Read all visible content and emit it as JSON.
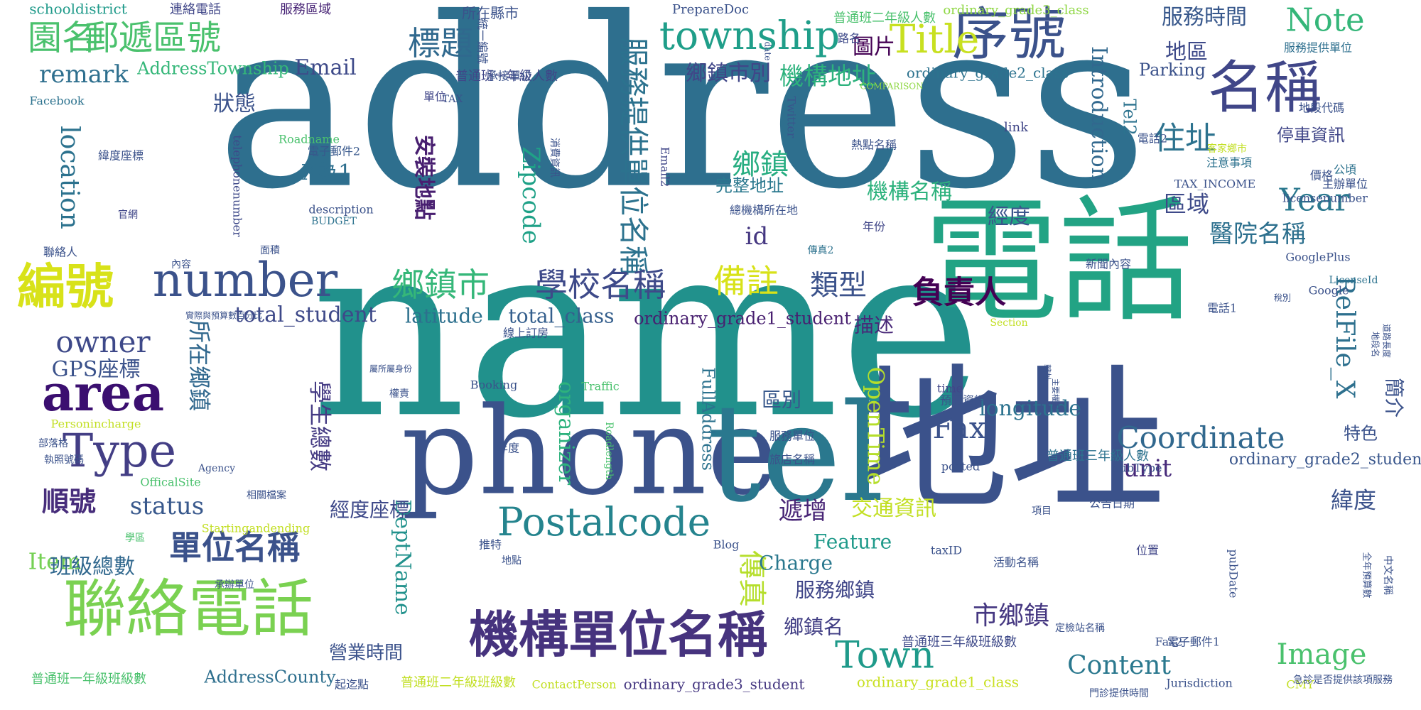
{
  "words": [
    {
      "text": "address",
      "color": "#2e6f8e"
    },
    {
      "text": "name",
      "color": "#21918c"
    },
    {
      "text": "電話",
      "color": "#22a384"
    },
    {
      "text": "地址",
      "color": "#3b528b"
    },
    {
      "text": "phone",
      "color": "#3b528b"
    },
    {
      "text": "tel",
      "color": "#2a788e"
    },
    {
      "text": "序號",
      "color": "#3b528b"
    },
    {
      "text": "名稱",
      "color": "#404688"
    },
    {
      "text": "聯絡電話",
      "color": "#7ad151"
    },
    {
      "text": "機構單位名稱",
      "color": "#46337e"
    },
    {
      "text": "township",
      "color": "#1f9e89"
    },
    {
      "text": "Title",
      "color": "#c8e020"
    },
    {
      "text": "Note",
      "color": "#34b679"
    },
    {
      "text": "服務時間",
      "color": "#38588c"
    },
    {
      "text": "地區",
      "color": "#3e4a89"
    },
    {
      "text": "園名",
      "color": "#4ac16d"
    },
    {
      "text": "郵遞區號",
      "color": "#4ac16d"
    },
    {
      "text": "標題",
      "color": "#30698e"
    },
    {
      "text": "圖片",
      "color": "#440154"
    },
    {
      "text": "機構地址",
      "color": "#2db27d"
    },
    {
      "text": "鄉鎮市別",
      "color": "#404688"
    },
    {
      "text": "服務提供單位名稱",
      "color": "#2c728e"
    },
    {
      "text": "remark",
      "color": "#2e6f8e"
    },
    {
      "text": "AddressTownship",
      "color": "#35b779"
    },
    {
      "text": "Email",
      "color": "#3e4a89"
    },
    {
      "text": "number",
      "color": "#3b528b"
    },
    {
      "text": "area",
      "color": "#3b0f70"
    },
    {
      "text": "編號",
      "color": "#d8e219"
    },
    {
      "text": "Type",
      "color": "#433e85"
    },
    {
      "text": "location",
      "color": "#2c728e"
    },
    {
      "text": "狀態",
      "color": "#3b528b"
    },
    {
      "text": "owner",
      "color": "#3e4989"
    },
    {
      "text": "GPS座標",
      "color": "#3b528b"
    },
    {
      "text": "所在鄉鎮",
      "color": "#31688e"
    },
    {
      "text": "學生總數",
      "color": "#443a83"
    },
    {
      "text": "順號",
      "color": "#472d7b"
    },
    {
      "text": "status",
      "color": "#38588c"
    },
    {
      "text": "Item",
      "color": "#75d054"
    },
    {
      "text": "班級總數",
      "color": "#31688e"
    },
    {
      "text": "單位名稱",
      "color": "#3b528b"
    },
    {
      "text": "Postalcode",
      "color": "#25848e"
    },
    {
      "text": "傳真",
      "color": "#b5de2b"
    },
    {
      "text": "學校名稱",
      "color": "#3e4a89"
    },
    {
      "text": "鄉鎮市",
      "color": "#35b779"
    },
    {
      "text": "備註",
      "color": "#d8e219"
    },
    {
      "text": "類型",
      "color": "#3b528b"
    },
    {
      "text": "負責人",
      "color": "#440154"
    },
    {
      "text": "total_student",
      "color": "#3e4989"
    },
    {
      "text": "latitude",
      "color": "#2d708e"
    },
    {
      "text": "total_class",
      "color": "#355f8d"
    },
    {
      "text": "ordinary_grade1_student",
      "color": "#481f70"
    },
    {
      "text": "Zipcode",
      "color": "#1fa187"
    },
    {
      "text": "安裝地點",
      "color": "#481f70"
    },
    {
      "text": "鄉鎮",
      "color": "#27ad81"
    },
    {
      "text": "X為1",
      "color": "#2e6f8e"
    },
    {
      "text": "id",
      "color": "#453781"
    },
    {
      "text": "經度",
      "color": "#3a548c"
    },
    {
      "text": "機構名稱",
      "color": "#2db27d"
    },
    {
      "text": "完整地址",
      "color": "#2a788e"
    },
    {
      "text": "Introduction",
      "color": "#31688e"
    },
    {
      "text": "住址",
      "color": "#2c728e"
    },
    {
      "text": "區域",
      "color": "#3e4a89"
    },
    {
      "text": "Year",
      "color": "#2a788e"
    },
    {
      "text": "醫院名稱",
      "color": "#2d708e"
    },
    {
      "text": "停車資訊",
      "color": "#404688"
    },
    {
      "text": "RelFile_X",
      "color": "#2d708e"
    },
    {
      "text": "Fax",
      "color": "#3b528b"
    },
    {
      "text": "Coordinate",
      "color": "#31688e"
    },
    {
      "text": "描述",
      "color": "#482878"
    },
    {
      "text": "簡介",
      "color": "#3b528b"
    },
    {
      "text": "longitude",
      "color": "#2c728e"
    },
    {
      "text": "OpenTime",
      "color": "#b5de2b"
    },
    {
      "text": "區別",
      "color": "#38588c"
    },
    {
      "text": "DeptName",
      "color": "#21918c"
    },
    {
      "text": "organizer",
      "color": "#2db27d"
    },
    {
      "text": "unit",
      "color": "#472a7a"
    },
    {
      "text": "緯度",
      "color": "#3b528b"
    },
    {
      "text": "特色",
      "color": "#3b528b"
    },
    {
      "text": "交通資訊",
      "color": "#c2df23"
    },
    {
      "text": "遞增",
      "color": "#482576"
    },
    {
      "text": "Feature",
      "color": "#1f9a8a"
    },
    {
      "text": "Charge",
      "color": "#2a788e"
    },
    {
      "text": "服務鄉鎮",
      "color": "#404688"
    },
    {
      "text": "鄉鎮名",
      "color": "#423f85"
    },
    {
      "text": "經度座標",
      "color": "#3e4989"
    },
    {
      "text": "營業時間",
      "color": "#3b528b"
    },
    {
      "text": "AddressCounty",
      "color": "#2e6f8e"
    },
    {
      "text": "Town",
      "color": "#1f9a8a"
    },
    {
      "text": "市鄉鎮",
      "color": "#453781"
    },
    {
      "text": "Content",
      "color": "#2a788e"
    },
    {
      "text": "Image",
      "color": "#4ac16d"
    },
    {
      "text": "FullAddress",
      "color": "#2c728e"
    },
    {
      "text": "ordinary_grade2_student",
      "color": "#39568c"
    },
    {
      "text": "ordinary_grade2_class",
      "color": "#2c728e"
    },
    {
      "text": "ordinary_grade3_class",
      "color": "#8fd744"
    },
    {
      "text": "ordinary_grade3_student",
      "color": "#453781"
    },
    {
      "text": "ordinary_grade1_class",
      "color": "#c8e020"
    },
    {
      "text": "普通班一年級人數",
      "color": "#404688"
    },
    {
      "text": "普通班二年級人數",
      "color": "#4ac16d"
    },
    {
      "text": "普通班一年級班級數",
      "color": "#4ac16d"
    },
    {
      "text": "普通班二年級班級數",
      "color": "#c2df23"
    },
    {
      "text": "普通班三年級班級數",
      "color": "#3e4989"
    },
    {
      "text": "普通班三年級人數",
      "color": "#2c728e"
    },
    {
      "text": "Parking",
      "color": "#3b528b"
    },
    {
      "text": "Tel2",
      "color": "#2c728e"
    },
    {
      "text": "所在縣市",
      "color": "#3b528b"
    },
    {
      "text": "schooldistrict",
      "color": "#1f9a8a"
    },
    {
      "text": "連絡電話",
      "color": "#404688"
    },
    {
      "text": "服務區域",
      "color": "#482576"
    },
    {
      "text": "PrepareDoc",
      "color": "#3b528b"
    },
    {
      "text": "統一編號",
      "color": "#3b528b"
    },
    {
      "text": "路名",
      "color": "#3e4989"
    },
    {
      "text": "服務提供單位",
      "color": "#2e6f8e"
    },
    {
      "text": "承接單位",
      "color": "#3b528b"
    },
    {
      "text": "單位",
      "color": "#404688"
    },
    {
      "text": "TAX",
      "color": "#3b528b"
    },
    {
      "text": "COMPARISON",
      "color": "#8fd744"
    },
    {
      "text": "地段代碼",
      "color": "#3b528b"
    },
    {
      "text": "Facebook",
      "color": "#2c728e"
    },
    {
      "text": "Twitter",
      "color": "#39568c"
    },
    {
      "text": "link",
      "color": "#404688"
    },
    {
      "text": "電話2",
      "color": "#3b528b"
    },
    {
      "text": "客家鄉市",
      "color": "#c2df23"
    },
    {
      "text": "熱點名稱",
      "color": "#3b528b"
    },
    {
      "text": "Roadname",
      "color": "#4ac16d"
    },
    {
      "text": "電子郵件2",
      "color": "#38588c"
    },
    {
      "text": "緯度座標",
      "color": "#3b528b"
    },
    {
      "text": "telephonenumber",
      "color": "#3e4989"
    },
    {
      "text": "description",
      "color": "#3b528b"
    },
    {
      "text": "BUDGET",
      "color": "#2c728e"
    },
    {
      "text": "消費資訊",
      "color": "#3b528b"
    },
    {
      "text": "Email2",
      "color": "#404688"
    },
    {
      "text": "總機構所在地",
      "color": "#3b528b"
    },
    {
      "text": "年份",
      "color": "#404688"
    },
    {
      "text": "TAX_INCOME",
      "color": "#3b528b"
    },
    {
      "text": "licensenumber",
      "color": "#3b528b"
    },
    {
      "text": "注意事項",
      "color": "#2c728e"
    },
    {
      "text": "主辦單位",
      "color": "#3b528b"
    },
    {
      "text": "價格",
      "color": "#3b528b"
    },
    {
      "text": "公頃",
      "color": "#2c728e"
    },
    {
      "text": "官網",
      "color": "#404688"
    },
    {
      "text": "聯絡人",
      "color": "#3b528b"
    },
    {
      "text": "內容",
      "color": "#3b528b"
    },
    {
      "text": "面積",
      "color": "#3b528b"
    },
    {
      "text": "傳真2",
      "color": "#2c728e"
    },
    {
      "text": "新聞內容",
      "color": "#3b528b"
    },
    {
      "text": "GooglePlus",
      "color": "#3b528b"
    },
    {
      "text": "LicenseId",
      "color": "#2c728e"
    },
    {
      "text": "Google",
      "color": "#3b528b"
    },
    {
      "text": "電話1",
      "color": "#3b528b"
    },
    {
      "text": "Section",
      "color": "#c2df23"
    },
    {
      "text": "線上訂房",
      "color": "#3b528b"
    },
    {
      "text": "Booking",
      "color": "#3b528b"
    },
    {
      "text": "Traffic",
      "color": "#4ac16d"
    },
    {
      "text": "time",
      "color": "#404688"
    },
    {
      "text": "預訂資訊",
      "color": "#3b528b"
    },
    {
      "text": "服務單位",
      "color": "#3b528b"
    },
    {
      "text": "旅店名稱",
      "color": "#3b528b"
    },
    {
      "text": "posted",
      "color": "#3b528b"
    },
    {
      "text": "SubType",
      "color": "#3b528b"
    },
    {
      "text": "公告日期",
      "color": "#3b528b"
    },
    {
      "text": "項目",
      "color": "#3b528b"
    },
    {
      "text": "位置",
      "color": "#404688"
    },
    {
      "text": "taxID",
      "color": "#3b528b"
    },
    {
      "text": "活動名稱",
      "color": "#3b528b"
    },
    {
      "text": "pubDate",
      "color": "#3b528b"
    },
    {
      "text": "Blog",
      "color": "#3b528b"
    },
    {
      "text": "推特",
      "color": "#3b528b"
    },
    {
      "text": "地點",
      "color": "#3b528b"
    },
    {
      "text": "Roadlength",
      "color": "#4ac16d"
    },
    {
      "text": "年度",
      "color": "#3b528b"
    },
    {
      "text": "Personincharge",
      "color": "#c2df23"
    },
    {
      "text": "部落格",
      "color": "#3b528b"
    },
    {
      "text": "執照號碼",
      "color": "#3b528b"
    },
    {
      "text": "Agency",
      "color": "#3b528b"
    },
    {
      "text": "OfficalSite",
      "color": "#4ac16d"
    },
    {
      "text": "相關檔案",
      "color": "#3b528b"
    },
    {
      "text": "學區",
      "color": "#4ac16d"
    },
    {
      "text": "Startingandending",
      "color": "#c2df23"
    },
    {
      "text": "承辦單位",
      "color": "#3b528b"
    },
    {
      "text": "起迄點",
      "color": "#3b528b"
    },
    {
      "text": "ContactPerson",
      "color": "#c2df23"
    },
    {
      "text": "Jurisdiction",
      "color": "#3b528b"
    },
    {
      "text": "CMY",
      "color": "#c2df23"
    },
    {
      "text": "Fax2",
      "color": "#3b528b"
    },
    {
      "text": "電子郵件1",
      "color": "#3b528b"
    },
    {
      "text": "門診提供時間",
      "color": "#3b528b"
    },
    {
      "text": "定檢站名稱",
      "color": "#3b528b"
    },
    {
      "text": "急診是否提供該項服務",
      "color": "#3b528b"
    },
    {
      "text": "中文名稱",
      "color": "#3b528b"
    },
    {
      "text": "全年預算數",
      "color": "#3b528b"
    },
    {
      "text": "地段名",
      "color": "#3b528b"
    },
    {
      "text": "道路長度",
      "color": "#3b528b"
    },
    {
      "text": "主要權定",
      "color": "#3b528b"
    },
    {
      "text": "轄址",
      "color": "#3b528b"
    },
    {
      "text": "權責",
      "color": "#3b528b"
    },
    {
      "text": "date",
      "color": "#3b528b"
    },
    {
      "text": "屬所屬身份",
      "color": "#3b528b"
    },
    {
      "text": "實際與預算數百分比",
      "color": "#3b528b"
    },
    {
      "text": "稅別",
      "color": "#3b528b"
    }
  ]
}
